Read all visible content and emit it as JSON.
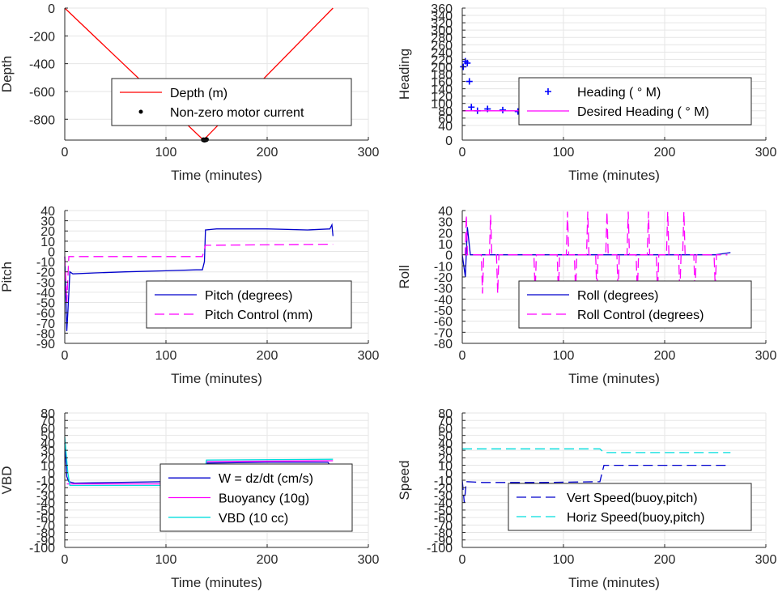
{
  "chart_data": [
    {
      "id": "depth",
      "type": "line",
      "xlabel": "Time (minutes)",
      "ylabel": "Depth",
      "xlim": [
        0,
        300
      ],
      "ylim": [
        -950,
        0
      ],
      "xticks": [
        0,
        100,
        200,
        300
      ],
      "yticks": [
        0,
        -200,
        -400,
        -600,
        -800
      ],
      "legend": "bottom-right",
      "series": [
        {
          "name": "Depth (m)",
          "style": "solid",
          "color": "#ff0000",
          "points": [
            [
              0,
              0
            ],
            [
              137,
              -950
            ],
            [
              265,
              0
            ]
          ]
        },
        {
          "name": "Non-zero motor current",
          "style": "dot",
          "color": "#000000",
          "points": [
            [
              137,
              -948
            ],
            [
              138,
              -950
            ],
            [
              139,
              -948
            ],
            [
              140,
              -946
            ]
          ]
        }
      ]
    },
    {
      "id": "heading",
      "type": "scatter",
      "xlabel": "Time (minutes)",
      "ylabel": "Heading",
      "xlim": [
        0,
        300
      ],
      "ylim": [
        0,
        360
      ],
      "xticks": [
        0,
        100,
        200,
        300
      ],
      "yticks": [
        0,
        40,
        60,
        80,
        100,
        120,
        140,
        160,
        180,
        200,
        220,
        240,
        260,
        280,
        300,
        320,
        340,
        360
      ],
      "legend": "right",
      "series": [
        {
          "name": "Heading ( ° M)",
          "style": "plus",
          "color": "#0000ff",
          "points": [
            [
              1,
              200
            ],
            [
              3,
              215
            ],
            [
              5,
              210
            ],
            [
              7,
              160
            ],
            [
              9,
              90
            ],
            [
              15,
              80
            ],
            [
              25,
              85
            ],
            [
              40,
              82
            ],
            [
              55,
              78
            ],
            [
              70,
              72
            ],
            [
              85,
              80
            ],
            [
              100,
              95
            ],
            [
              115,
              70
            ],
            [
              130,
              82
            ],
            [
              140,
              75
            ],
            [
              155,
              72
            ],
            [
              170,
              80
            ],
            [
              185,
              78
            ],
            [
              200,
              75
            ],
            [
              215,
              80
            ],
            [
              230,
              72
            ],
            [
              245,
              78
            ],
            [
              260,
              82
            ],
            [
              265,
              75
            ]
          ]
        },
        {
          "name": "Desired Heading ( ° M)",
          "style": "solid",
          "color": "#ff00ff",
          "points": [
            [
              0,
              80
            ],
            [
              265,
              80
            ]
          ]
        }
      ]
    },
    {
      "id": "pitch",
      "type": "line",
      "xlabel": "Time (minutes)",
      "ylabel": "Pitch",
      "xlim": [
        0,
        300
      ],
      "ylim": [
        -90,
        40
      ],
      "xticks": [
        0,
        100,
        200,
        300
      ],
      "yticks": [
        40,
        30,
        20,
        10,
        0,
        -10,
        -20,
        -30,
        -40,
        -50,
        -60,
        -70,
        -80,
        -90
      ],
      "legend": "bottom-right",
      "series": [
        {
          "name": "Pitch (degrees)",
          "style": "solid",
          "color": "#0000cc",
          "points": [
            [
              0,
              -5
            ],
            [
              2,
              -78
            ],
            [
              3,
              -60
            ],
            [
              5,
              -20
            ],
            [
              8,
              -22
            ],
            [
              30,
              -21
            ],
            [
              60,
              -20
            ],
            [
              100,
              -19
            ],
            [
              130,
              -18
            ],
            [
              136,
              -18
            ],
            [
              138,
              -10
            ],
            [
              139,
              21
            ],
            [
              150,
              22
            ],
            [
              200,
              22
            ],
            [
              240,
              21
            ],
            [
              262,
              22
            ],
            [
              264,
              26
            ],
            [
              265,
              15
            ]
          ]
        },
        {
          "name": "Pitch Control (mm)",
          "style": "dash",
          "color": "#ff00ff",
          "points": [
            [
              0,
              -5
            ],
            [
              2,
              -50
            ],
            [
              4,
              -5
            ],
            [
              136,
              -5
            ],
            [
              139,
              6
            ],
            [
              265,
              7
            ]
          ]
        }
      ]
    },
    {
      "id": "roll",
      "type": "line",
      "xlabel": "Time (minutes)",
      "ylabel": "Roll",
      "xlim": [
        0,
        300
      ],
      "ylim": [
        -80,
        40
      ],
      "xticks": [
        0,
        100,
        200,
        300
      ],
      "yticks": [
        40,
        30,
        20,
        10,
        0,
        -10,
        -20,
        -30,
        -40,
        -50,
        -60,
        -70,
        -80
      ],
      "legend": "bottom-right",
      "series": [
        {
          "name": "Roll (degrees)",
          "style": "solid",
          "color": "#0000cc",
          "points": [
            [
              0,
              0
            ],
            [
              3,
              -20
            ],
            [
              5,
              25
            ],
            [
              8,
              0
            ],
            [
              20,
              0
            ],
            [
              50,
              0
            ],
            [
              100,
              0
            ],
            [
              150,
              0
            ],
            [
              200,
              0
            ],
            [
              250,
              0
            ],
            [
              265,
              2
            ]
          ]
        },
        {
          "name": "Roll Control (degrees)",
          "style": "dash",
          "color": "#ff00ff",
          "spikes": [
            [
              4,
              36
            ],
            [
              20,
              -35
            ],
            [
              28,
              36
            ],
            [
              35,
              -35
            ],
            [
              72,
              -35
            ],
            [
              95,
              -35
            ],
            [
              104,
              39
            ],
            [
              112,
              -35
            ],
            [
              124,
              39
            ],
            [
              133,
              -35
            ],
            [
              143,
              39
            ],
            [
              154,
              -35
            ],
            [
              164,
              39
            ],
            [
              173,
              -35
            ],
            [
              184,
              39
            ],
            [
              193,
              -35
            ],
            [
              203,
              39
            ],
            [
              215,
              -35
            ],
            [
              219,
              39
            ],
            [
              230,
              -35
            ],
            [
              250,
              -30
            ]
          ]
        }
      ]
    },
    {
      "id": "vbd",
      "type": "line",
      "xlabel": "Time (minutes)",
      "ylabel": "VBD",
      "xlim": [
        0,
        300
      ],
      "ylim": [
        -100,
        80
      ],
      "xticks": [
        0,
        100,
        200,
        300
      ],
      "yticks": [
        80,
        70,
        60,
        50,
        40,
        30,
        20,
        10,
        0,
        -10,
        -20,
        -30,
        -40,
        -50,
        -60,
        -70,
        -80,
        -90,
        -100
      ],
      "legend": "bottom-right",
      "series": [
        {
          "name": "W = dz/dt (cm/s)",
          "style": "solid",
          "color": "#0000cc",
          "points": [
            [
              0,
              40
            ],
            [
              2,
              -5
            ],
            [
              4,
              -12
            ],
            [
              10,
              -14
            ],
            [
              50,
              -13
            ],
            [
              100,
              -12
            ],
            [
              135,
              -11
            ],
            [
              140,
              13
            ],
            [
              200,
              14
            ],
            [
              260,
              14
            ],
            [
              265,
              5
            ]
          ]
        },
        {
          "name": "Buoyancy (10g)",
          "style": "solid",
          "color": "#ff00ff",
          "points": [
            [
              2,
              -15
            ],
            [
              136,
              -15
            ],
            [
              140,
              15
            ],
            [
              265,
              16
            ]
          ]
        },
        {
          "name": "VBD (10 cc)",
          "style": "solid",
          "color": "#00dddd",
          "points": [
            [
              0,
              48
            ],
            [
              3,
              0
            ],
            [
              5,
              -17
            ],
            [
              136,
              -17
            ],
            [
              140,
              17
            ],
            [
              265,
              18
            ]
          ]
        }
      ]
    },
    {
      "id": "speed",
      "type": "line",
      "xlabel": "Time (minutes)",
      "ylabel": "Speed",
      "xlim": [
        0,
        300
      ],
      "ylim": [
        -100,
        80
      ],
      "xticks": [
        0,
        100,
        200,
        300
      ],
      "yticks": [
        80,
        70,
        60,
        50,
        40,
        30,
        20,
        10,
        0,
        -10,
        -20,
        -30,
        -40,
        -50,
        -60,
        -70,
        -80,
        -90,
        -100
      ],
      "legend": "bottom-right",
      "series": [
        {
          "name": "Vert Speed(buoy,pitch)",
          "style": "dash",
          "color": "#0000cc",
          "points": [
            [
              0,
              -10
            ],
            [
              2,
              -40
            ],
            [
              4,
              -12
            ],
            [
              20,
              -13
            ],
            [
              80,
              -13
            ],
            [
              136,
              -12
            ],
            [
              140,
              10
            ],
            [
              265,
              10
            ]
          ]
        },
        {
          "name": "Horiz Speed(buoy,pitch)",
          "style": "dash",
          "color": "#00dddd",
          "points": [
            [
              0,
              32
            ],
            [
              136,
              32
            ],
            [
              140,
              27
            ],
            [
              265,
              27
            ]
          ]
        }
      ]
    }
  ]
}
